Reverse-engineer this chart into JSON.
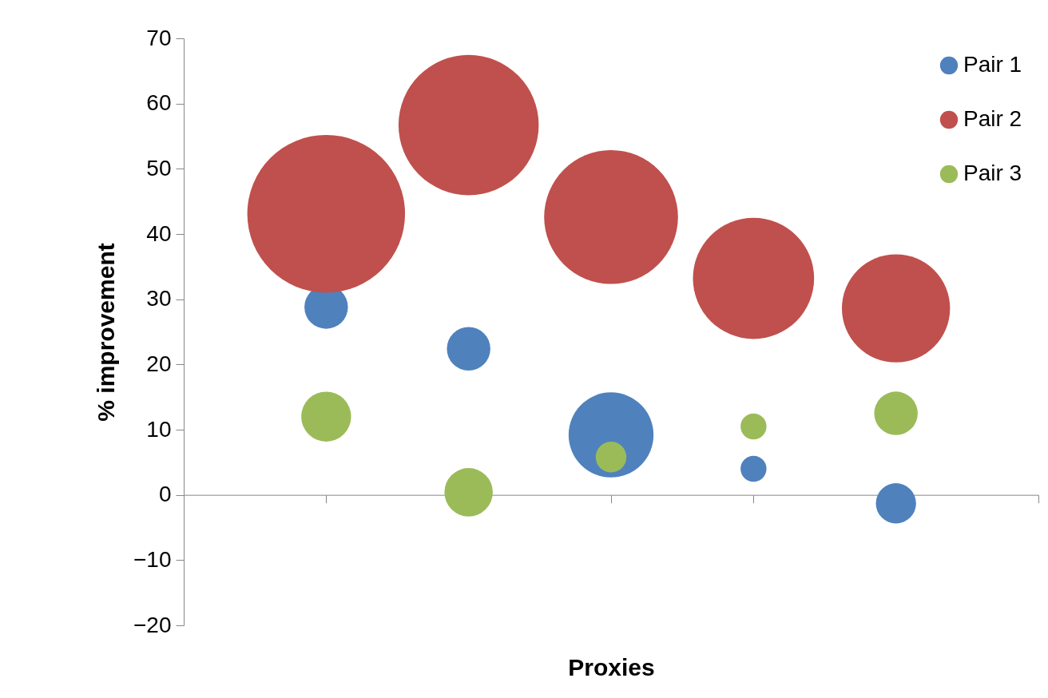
{
  "chart_data": {
    "type": "bubble",
    "xlabel": "Proxies",
    "ylabel": "% improvement",
    "categories": [
      null,
      null,
      null,
      null,
      null
    ],
    "series": [
      {
        "name": "Pair 1",
        "color": "#4f81bd",
        "values": [
          28.8,
          22.4,
          9.2,
          4.0,
          -1.3
        ],
        "sizes": [
          0.076,
          0.076,
          0.29,
          0.027,
          0.065
        ]
      },
      {
        "name": "Pair 2",
        "color": "#c0504d",
        "values": [
          43.1,
          56.7,
          42.6,
          33.2,
          28.6
        ],
        "sizes": [
          1,
          0.79,
          0.72,
          0.59,
          0.47
        ]
      },
      {
        "name": "Pair 3",
        "color": "#9bbb59",
        "values": [
          12.0,
          0.4,
          5.8,
          10.5,
          12.5
        ],
        "sizes": [
          0.1,
          0.094,
          0.038,
          0.027,
          0.076
        ]
      }
    ],
    "ylim": [
      -20,
      70
    ],
    "yticks": [
      -20,
      -10,
      0,
      10,
      20,
      30,
      40,
      50,
      60,
      70
    ],
    "legend": "top right"
  }
}
